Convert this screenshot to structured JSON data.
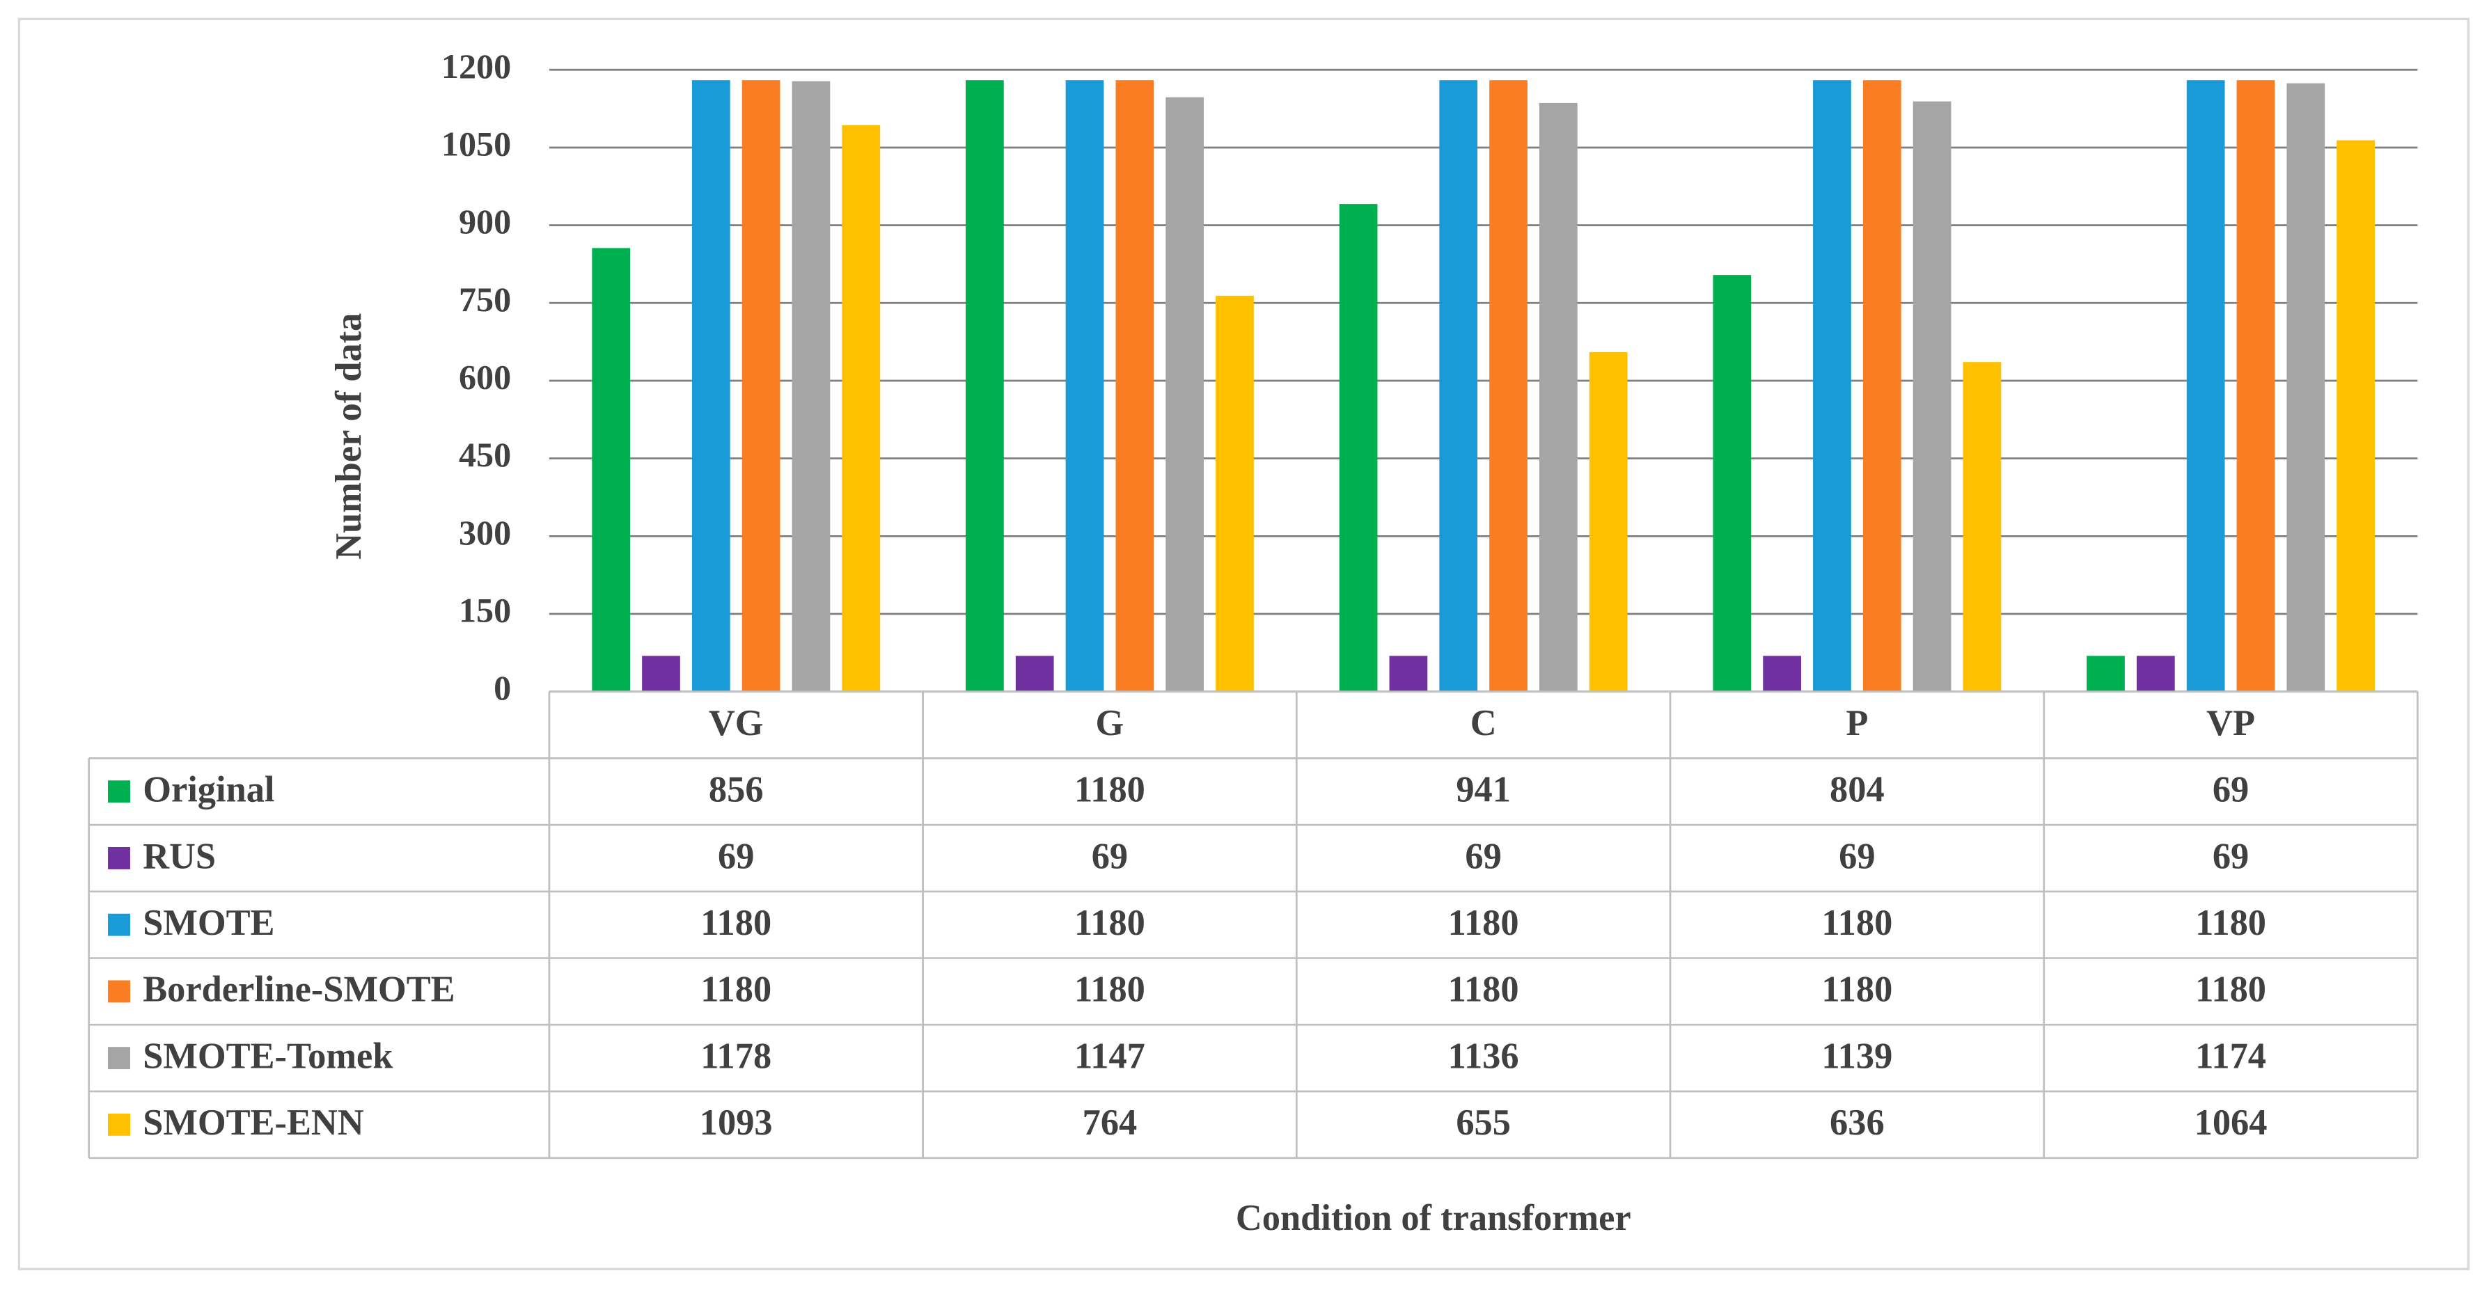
{
  "chart_data": {
    "type": "bar",
    "y_label": "Number of data",
    "x_label": "Condition of transformer",
    "categories": [
      "VG",
      "G",
      "C",
      "P",
      "VP"
    ],
    "series": [
      {
        "name": "Original",
        "color": "#00b050",
        "values": [
          856,
          1180,
          941,
          804,
          69
        ]
      },
      {
        "name": "RUS",
        "color": "#7030a0",
        "values": [
          69,
          69,
          69,
          69,
          69
        ]
      },
      {
        "name": "SMOTE",
        "color": "#199bd8",
        "values": [
          1180,
          1180,
          1180,
          1180,
          1180
        ]
      },
      {
        "name": "Borderline-SMOTE",
        "color": "#fb7d23",
        "values": [
          1180,
          1180,
          1180,
          1180,
          1180
        ]
      },
      {
        "name": "SMOTE-Tomek",
        "color": "#a5a5a5",
        "values": [
          1178,
          1147,
          1136,
          1139,
          1174
        ]
      },
      {
        "name": "SMOTE-ENN",
        "color": "#ffc000",
        "values": [
          1093,
          764,
          655,
          636,
          1064
        ]
      }
    ],
    "ylim": [
      0,
      1200
    ],
    "yticks": [
      0,
      150,
      300,
      450,
      600,
      750,
      900,
      1050,
      1200
    ],
    "grid": true
  }
}
